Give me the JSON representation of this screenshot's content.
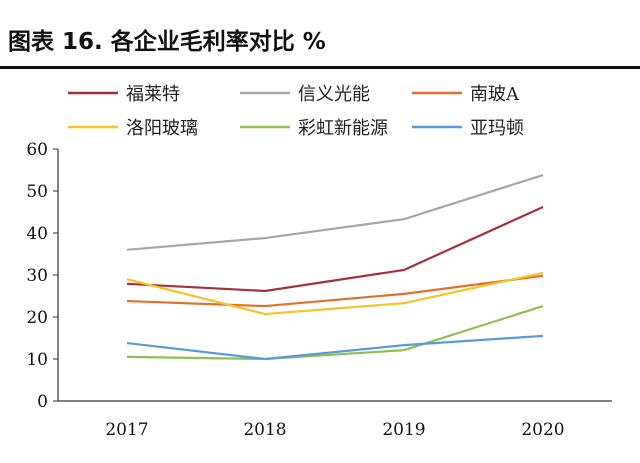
{
  "chart_data": {
    "type": "line",
    "title": "图表 16. 各企业毛利率对比 %",
    "categories": [
      "2017",
      "2018",
      "2019",
      "2020"
    ],
    "ylim": [
      0,
      60
    ],
    "yticks": [
      0,
      10,
      20,
      30,
      40,
      50,
      60
    ],
    "grid": false,
    "legend": "top",
    "series": [
      {
        "name": "福莱特",
        "color": "#a5303a",
        "values": [
          27.9,
          26.2,
          31.2,
          46.2
        ]
      },
      {
        "name": "信义光能",
        "color": "#a6a6a6",
        "values": [
          36.0,
          38.8,
          43.3,
          53.8
        ]
      },
      {
        "name": "南玻A",
        "color": "#e0702a",
        "values": [
          23.8,
          22.6,
          25.5,
          29.8
        ]
      },
      {
        "name": "洛阳玻璃",
        "color": "#f5c325",
        "values": [
          29.0,
          20.7,
          23.3,
          30.5
        ]
      },
      {
        "name": "彩虹新能源",
        "color": "#8cc152",
        "values": [
          10.5,
          10.0,
          12.1,
          22.6
        ]
      },
      {
        "name": "亚玛顿",
        "color": "#5b9bd5",
        "values": [
          13.8,
          10.0,
          13.3,
          15.5
        ]
      }
    ]
  }
}
